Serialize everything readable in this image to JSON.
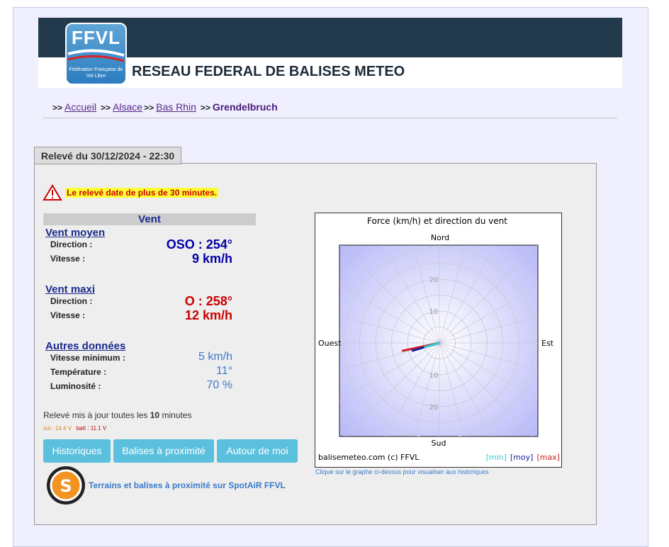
{
  "header": {
    "logo_text": "FFVL",
    "logo_subtitle": "Fédération Française de Vol Libre",
    "title": "RESEAU FEDERAL DE BALISES METEO"
  },
  "breadcrumb": [
    "Accueil",
    "Alsace",
    "Bas Rhin",
    "Grendelbruch"
  ],
  "panel": {
    "tab": "Relevé du 30/12/2024 - 22:30",
    "warning": "Le relevé date de plus de 30 minutes.",
    "section_title": "Vent",
    "groups": [
      {
        "title": "Vent moyen",
        "rows": [
          {
            "label": "Direction :",
            "value": "OSO : 254°"
          },
          {
            "label": "Vitesse :",
            "value": "9 km/h"
          }
        ]
      },
      {
        "title": "Vent maxi",
        "rows": [
          {
            "label": "Direction :",
            "value": "O : 258°"
          },
          {
            "label": "Vitesse :",
            "value": "12 km/h"
          }
        ]
      },
      {
        "title": "Autres données",
        "rows": [
          {
            "label": "Vitesse minimum :",
            "value": "5 km/h"
          },
          {
            "label": "Température :",
            "value": "11°"
          },
          {
            "label": "Luminosité :",
            "value": "70 %"
          }
        ]
      }
    ],
    "update_prefix": "Relevé mis à jour toutes les",
    "update_interval": "10",
    "update_suffix": "minutes",
    "sol": "sol : 14.4 V",
    "batt": "batt : 11.1 V",
    "buttons": [
      "Historiques",
      "Balises à proximité",
      "Autour de moi"
    ],
    "spotair_link": "Terrains et balises à proximité sur SpotAiR FFVL"
  },
  "wind_chart": {
    "type": "polar",
    "title": "Force (km/h) et direction du vent",
    "directions": {
      "north": "Nord",
      "south": "Sud",
      "west": "Ouest",
      "east": "Est"
    },
    "rlim": [
      0,
      30
    ],
    "rgrid": [
      5,
      10,
      15,
      20,
      25,
      30
    ],
    "rticks": [
      10,
      20
    ],
    "series": [
      {
        "name": "[min]",
        "color": "#33cccc",
        "directions": [
          254
        ],
        "values": [
          5
        ]
      },
      {
        "name": "[moy]",
        "color": "#1a1aa0",
        "directions": [
          254
        ],
        "values": [
          9
        ]
      },
      {
        "name": "[max]",
        "color": "#cc2222",
        "directions": [
          258
        ],
        "values": [
          12
        ]
      }
    ],
    "credit": "balisemeteo.com (c) FFVL",
    "caption": "Clique sur le graphe ci-dessus pour visualiser aux historiques"
  }
}
